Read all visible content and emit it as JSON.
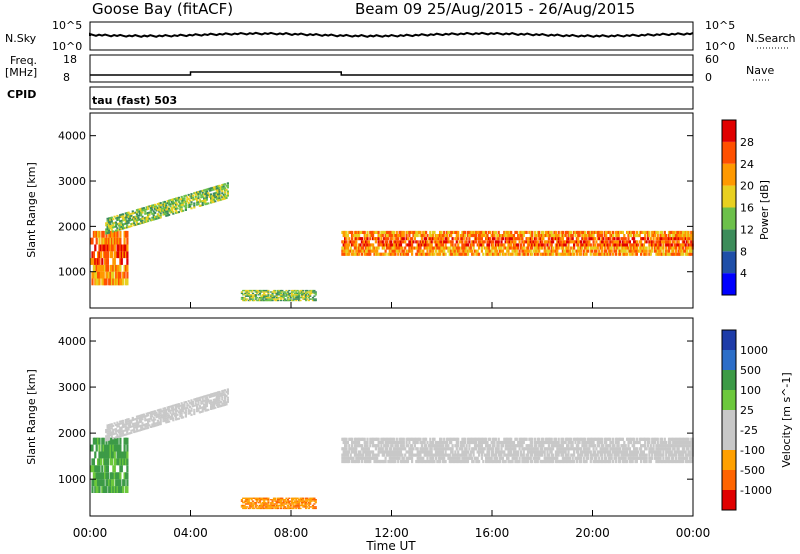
{
  "header": {
    "title": "Goose Bay (fitACF)",
    "beam_info": "Beam 09  25/Aug/2015 - 26/Aug/2015"
  },
  "left_labels": {
    "nsky": "N.Sky",
    "nsky_tick_hi": "10^5",
    "nsky_tick_lo": "10^0",
    "freq_line1": "Freq.",
    "freq_line2": "[MHz]",
    "freq_tick_hi": "18",
    "freq_tick_lo": "8",
    "cpid": "CPID",
    "cpid_value": "tau (fast) 503"
  },
  "right_labels": {
    "nsearch": "N.Search",
    "nsearch_tick_hi": "10^5",
    "nsearch_tick_lo": "10^0",
    "nave": "Nave",
    "nave_tick_hi": "60",
    "nave_tick_lo": "0"
  },
  "colors": {
    "power": [
      "#0000ff",
      "#1f4fa8",
      "#3c8c5a",
      "#6cc04a",
      "#e8d020",
      "#ff9900",
      "#ff5000",
      "#e00000"
    ],
    "velocity": [
      "#1e3ca8",
      "#2c6ec8",
      "#3c9a46",
      "#6cc83c",
      "#c8c8c8",
      "#c8c8c8",
      "#ffa000",
      "#ff6400",
      "#e00000"
    ]
  },
  "chart_data": [
    {
      "type": "heatmap",
      "name": "power",
      "ylabel": "Slant Range [km]",
      "yticks": [
        "1000",
        "2000",
        "3000",
        "4000"
      ],
      "ylim": [
        200,
        4500
      ],
      "xlim": [
        0,
        24
      ],
      "colorbar_label": "Power [dB]",
      "colorbar_ticks": [
        "4",
        "8",
        "12",
        "16",
        "20",
        "24",
        "28"
      ],
      "color_range": [
        0,
        32
      ],
      "features": [
        {
          "t0": 0.0,
          "t1": 1.5,
          "r0": 700,
          "r1": 1900,
          "level": "high"
        },
        {
          "t0": 0.6,
          "t1": 5.5,
          "r0": 1800,
          "r1": 2900,
          "level": "medium"
        },
        {
          "t0": 6.0,
          "t1": 9.0,
          "r0": 350,
          "r1": 600,
          "level": "medium"
        },
        {
          "t0": 10.0,
          "t1": 24.0,
          "r0": 1350,
          "r1": 1900,
          "level": "high"
        }
      ]
    },
    {
      "type": "heatmap",
      "name": "velocity",
      "ylabel": "Slant Range [km]",
      "yticks": [
        "1000",
        "2000",
        "3000",
        "4000"
      ],
      "ylim": [
        200,
        4500
      ],
      "xlim": [
        0,
        24
      ],
      "xticks": [
        "00:00",
        "04:00",
        "08:00",
        "12:00",
        "16:00",
        "20:00",
        "00:00"
      ],
      "xlabel": "Time UT",
      "colorbar_label": "Velocity [m s^-1]",
      "colorbar_ticks": [
        "1000",
        "500",
        "100",
        "25",
        "-25",
        "-100",
        "-500",
        "-1000"
      ],
      "features": [
        {
          "t0": 0.0,
          "t1": 1.5,
          "r0": 700,
          "r1": 1900,
          "sign": "positive"
        },
        {
          "t0": 0.6,
          "t1": 5.5,
          "r0": 1800,
          "r1": 2900,
          "sign": "zero"
        },
        {
          "t0": 6.0,
          "t1": 9.0,
          "r0": 350,
          "r1": 600,
          "sign": "negative"
        },
        {
          "t0": 10.0,
          "t1": 24.0,
          "r0": 1350,
          "r1": 1900,
          "sign": "zero"
        }
      ]
    }
  ]
}
